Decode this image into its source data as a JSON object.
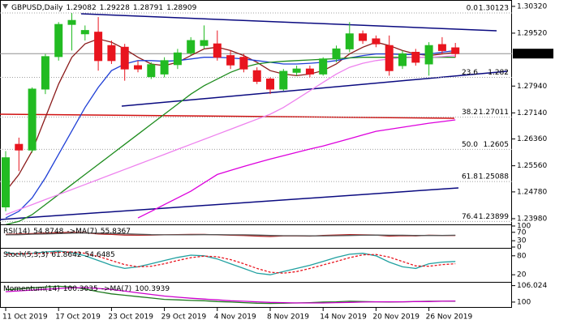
{
  "chart_data": [
    {
      "type": "candlestick",
      "title": "GBPUSD,Daily",
      "header_values": [
        1.29082,
        1.29228,
        1.28791,
        1.28909
      ],
      "categories": [
        "11 Oct 2019",
        null,
        null,
        null,
        "17 Oct 2019",
        null,
        null,
        null,
        "23 Oct 2019",
        null,
        null,
        null,
        "29 Oct 2019",
        null,
        null,
        null,
        "4 Nov 2019",
        null,
        null,
        null,
        "8 Nov 2019",
        null,
        null,
        null,
        "14 Nov 2019",
        null,
        null,
        null,
        "20 Nov 2019",
        null,
        null,
        null,
        "26 Nov 2019",
        null,
        null
      ],
      "open": [
        1.2433,
        1.262,
        1.2603,
        1.2785,
        1.2882,
        1.2978,
        1.295,
        1.2955,
        1.2915,
        1.291,
        1.2855,
        1.2822,
        1.283,
        1.2858,
        1.2893,
        1.2915,
        1.292,
        1.2885,
        1.288,
        1.284,
        1.2815,
        1.2785,
        1.2835,
        1.2845,
        1.283,
        1.2875,
        1.2905,
        1.295,
        1.2935,
        1.2915,
        1.2855,
        1.2895,
        1.286,
        1.2918,
        1.29082
      ],
      "high": [
        1.26,
        1.264,
        1.279,
        1.289,
        1.2985,
        1.3012,
        1.2975,
        1.3,
        1.293,
        1.292,
        1.287,
        1.2865,
        1.288,
        1.2905,
        1.294,
        1.2975,
        1.296,
        1.29,
        1.289,
        1.285,
        1.282,
        1.2845,
        1.2855,
        1.2855,
        1.288,
        1.2915,
        1.2985,
        1.296,
        1.2945,
        1.2945,
        1.29,
        1.2905,
        1.2925,
        1.294,
        1.29228
      ],
      "low": [
        1.242,
        1.254,
        1.2595,
        1.277,
        1.287,
        1.29,
        1.293,
        1.284,
        1.286,
        1.281,
        1.2835,
        1.2815,
        1.282,
        1.2845,
        1.2885,
        1.2905,
        1.287,
        1.2845,
        1.2835,
        1.28,
        1.277,
        1.278,
        1.2825,
        1.282,
        1.2825,
        1.2865,
        1.2895,
        1.292,
        1.291,
        1.2825,
        1.2845,
        1.2855,
        1.2825,
        1.289,
        1.28791
      ],
      "close": [
        1.258,
        1.2603,
        1.2785,
        1.2882,
        1.2978,
        1.299,
        1.296,
        1.287,
        1.287,
        1.2845,
        1.2845,
        1.2858,
        1.287,
        1.2893,
        1.293,
        1.293,
        1.288,
        1.2857,
        1.2845,
        1.2808,
        1.2785,
        1.2838,
        1.2845,
        1.283,
        1.2875,
        1.2905,
        1.295,
        1.293,
        1.292,
        1.284,
        1.289,
        1.2865,
        1.2915,
        1.29,
        1.28909
      ],
      "up_color": "#22bb22",
      "down_color": "#e8141e",
      "ylim": [
        1.2381,
        1.3051
      ],
      "yticks": [
        {
          "value": 1.3032,
          "label": "1.30320"
        },
        {
          "value": 1.2952,
          "label": "1.29520"
        },
        {
          "value": 1.2794,
          "label": "1.27940"
        },
        {
          "value": 1.2714,
          "label": "1.27140"
        },
        {
          "value": 1.2636,
          "label": "1.26360"
        },
        {
          "value": 1.2556,
          "label": "1.25560"
        },
        {
          "value": 1.2478,
          "label": "1.24780"
        },
        {
          "value": 1.2398,
          "label": "1.23980"
        }
      ],
      "current_price": 1.28909,
      "fib_levels": [
        {
          "label": "0.0",
          "value": 1.30123
        },
        {
          "label": "23.6",
          "value": 1.282
        },
        {
          "label": "38.2",
          "value": 1.27011
        },
        {
          "label": "50.0",
          "value": 1.2605
        },
        {
          "label": "61.8",
          "value": 1.25088
        },
        {
          "label": "76.4",
          "value": 1.23899
        }
      ],
      "series": [
        {
          "color": "#8b1a1a",
          "values": [
            1.248,
            1.253,
            1.26,
            1.27,
            1.28,
            1.288,
            1.292,
            1.2935,
            1.2925,
            1.2905,
            1.288,
            1.286,
            1.2855,
            1.2865,
            1.2885,
            1.2905,
            1.291,
            1.29,
            1.2885,
            1.2865,
            1.284,
            1.283,
            1.2825,
            1.283,
            1.284,
            1.286,
            1.289,
            1.291,
            1.2925,
            1.2915,
            1.29,
            1.289,
            1.2885,
            1.289,
            1.2895
          ]
        },
        {
          "color": "#1f3fd6",
          "values": [
            1.24,
            1.242,
            1.246,
            1.252,
            1.259,
            1.266,
            1.273,
            1.279,
            1.284,
            1.286,
            1.287,
            1.287,
            1.2868,
            1.287,
            1.2875,
            1.288,
            1.288,
            1.2878,
            1.2875,
            1.287,
            1.2865,
            1.286,
            1.286,
            1.2862,
            1.2865,
            1.287,
            1.2878,
            1.2885,
            1.289,
            1.289,
            1.2888,
            1.2888,
            1.289,
            1.2895,
            1.29
          ]
        },
        {
          "color": "#1e8c1e",
          "values": [
            1.238,
            1.239,
            1.241,
            1.244,
            1.247,
            1.25,
            1.253,
            1.256,
            1.259,
            1.262,
            1.265,
            1.268,
            1.271,
            1.274,
            1.277,
            1.2795,
            1.2815,
            1.2835,
            1.285,
            1.286,
            1.2865,
            1.2868,
            1.287,
            1.2872,
            1.2874,
            1.2876,
            1.2878,
            1.288,
            1.288,
            1.288,
            1.288,
            1.288,
            1.288,
            1.288,
            1.288
          ]
        },
        {
          "color": "#ee82ee",
          "values": [
            1.241,
            1.2425,
            1.244,
            1.2455,
            1.247,
            1.2485,
            1.25,
            1.2515,
            1.253,
            1.2545,
            1.256,
            1.2575,
            1.259,
            1.2605,
            1.262,
            1.2635,
            1.265,
            1.2665,
            1.268,
            1.2695,
            1.271,
            1.273,
            1.2755,
            1.278,
            1.2805,
            1.283,
            1.285,
            1.2862,
            1.287,
            1.2875,
            1.2878,
            1.288,
            1.288,
            1.2882,
            1.2885
          ]
        },
        {
          "color": "#dd00dd",
          "values": [
            null,
            null,
            null,
            null,
            null,
            null,
            null,
            null,
            null,
            null,
            1.24,
            1.242,
            1.244,
            1.246,
            1.248,
            1.2505,
            1.253,
            1.2542,
            1.2554,
            1.2565,
            1.2576,
            1.2586,
            1.2596,
            1.2606,
            1.2615,
            1.2626,
            1.2637,
            1.2648,
            1.2659,
            1.2665,
            1.2671,
            1.2677,
            1.2683,
            1.2688,
            1.2693
          ]
        }
      ]
    },
    {
      "type": "line",
      "ylim": [
        0,
        100
      ],
      "yticks": [
        100,
        70,
        30,
        0
      ],
      "series": [
        {
          "name": "RSI(14)",
          "last": 54.8748,
          "color": "#b22222",
          "values": [
            60,
            62,
            64,
            66,
            68,
            70,
            68,
            62,
            60,
            57,
            56,
            57,
            58,
            59,
            60,
            60,
            58,
            56,
            55,
            52,
            50,
            53,
            53,
            52,
            55,
            57,
            59,
            58,
            57,
            52,
            54,
            53,
            56,
            55,
            55
          ]
        },
        {
          "name": "->MA(7)",
          "last": 55.8367,
          "color": "#555555",
          "values": [
            58,
            59,
            61,
            62,
            64,
            66,
            67,
            66,
            65,
            63,
            61,
            59,
            58,
            58,
            58,
            59,
            59,
            58,
            58,
            57,
            55,
            54,
            54,
            53,
            53,
            54,
            55,
            56,
            57,
            56,
            56,
            55,
            55,
            55,
            56
          ]
        }
      ]
    },
    {
      "type": "line",
      "ylim": [
        0,
        100
      ],
      "yticks": [
        80,
        20
      ],
      "series": [
        {
          "name": "Stoch(5,3,3)",
          "last": 61.8642,
          "color": "#20a0a0",
          "values": [
            90,
            85,
            88,
            92,
            95,
            90,
            80,
            65,
            50,
            40,
            45,
            55,
            65,
            75,
            82,
            80,
            70,
            55,
            40,
            25,
            20,
            30,
            40,
            50,
            62,
            75,
            85,
            88,
            80,
            60,
            45,
            40,
            55,
            60,
            62
          ]
        },
        {
          "last": 54.6485,
          "color": "#e8141e",
          "dashed": true,
          "values": [
            85,
            86,
            87,
            88,
            91,
            92,
            88,
            78,
            65,
            52,
            45,
            47,
            55,
            65,
            74,
            79,
            77,
            68,
            55,
            40,
            28,
            25,
            30,
            40,
            51,
            62,
            74,
            83,
            84,
            76,
            62,
            48,
            47,
            52,
            55
          ]
        }
      ]
    },
    {
      "type": "line",
      "ylim": [
        98.5,
        106.8
      ],
      "yticks": [
        106.024,
        100
      ],
      "series": [
        {
          "name": "Momentum(14)",
          "last": 100.3035,
          "color": "#1e7a1e",
          "values": [
            104.5,
            104.8,
            105.2,
            105.5,
            105.8,
            105.5,
            104.8,
            103.8,
            103.0,
            102.5,
            102.0,
            101.5,
            101.0,
            100.8,
            100.6,
            100.5,
            100.2,
            100.0,
            99.8,
            99.6,
            99.5,
            99.6,
            99.7,
            99.8,
            100.0,
            100.1,
            100.3,
            100.2,
            100.1,
            100.0,
            100.1,
            100.2,
            100.3,
            100.3,
            100.3
          ]
        },
        {
          "name": "->MA(7)",
          "last": 100.3939,
          "color": "#cc00cc",
          "values": [
            103.8,
            104.1,
            104.4,
            104.7,
            105.0,
            105.2,
            105.3,
            105.0,
            104.6,
            104.0,
            103.4,
            102.8,
            102.2,
            101.8,
            101.4,
            101.1,
            100.8,
            100.5,
            100.3,
            100.1,
            99.9,
            99.8,
            99.7,
            99.7,
            99.7,
            99.8,
            99.9,
            100.0,
            100.1,
            100.1,
            100.1,
            100.2,
            100.2,
            100.3,
            100.4
          ]
        }
      ]
    }
  ]
}
